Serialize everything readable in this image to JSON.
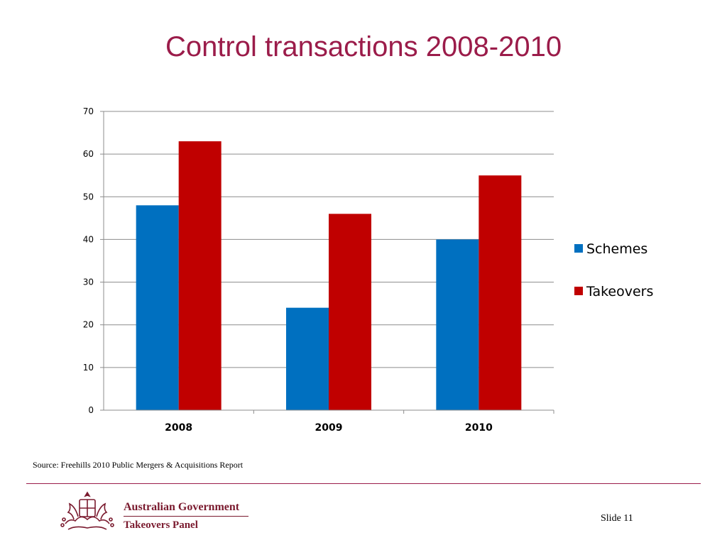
{
  "slide": {
    "title": "Control transactions 2008-2010",
    "source": "Source: Freehills 2010 Public Mergers & Acquisitions Report",
    "slide_number": "Slide 11"
  },
  "footer": {
    "org_line1": "Australian Government",
    "org_line2": "Takeovers Panel"
  },
  "colors": {
    "title": "#9b1c4a",
    "schemes": "#0070c0",
    "takeovers": "#c00000",
    "grid": "#8c8c8c",
    "logo": "#7a1a2e"
  },
  "chart_data": {
    "type": "bar",
    "title": "",
    "xlabel": "",
    "ylabel": "",
    "categories": [
      "2008",
      "2009",
      "2010"
    ],
    "series": [
      {
        "name": "Schemes",
        "values": [
          48,
          24,
          40
        ],
        "color": "#0070c0"
      },
      {
        "name": "Takeovers",
        "values": [
          63,
          46,
          55
        ],
        "color": "#c00000"
      }
    ],
    "ylim": [
      0,
      70
    ],
    "yticks": [
      0,
      10,
      20,
      30,
      40,
      50,
      60,
      70
    ],
    "grid": true,
    "legend": "right"
  }
}
